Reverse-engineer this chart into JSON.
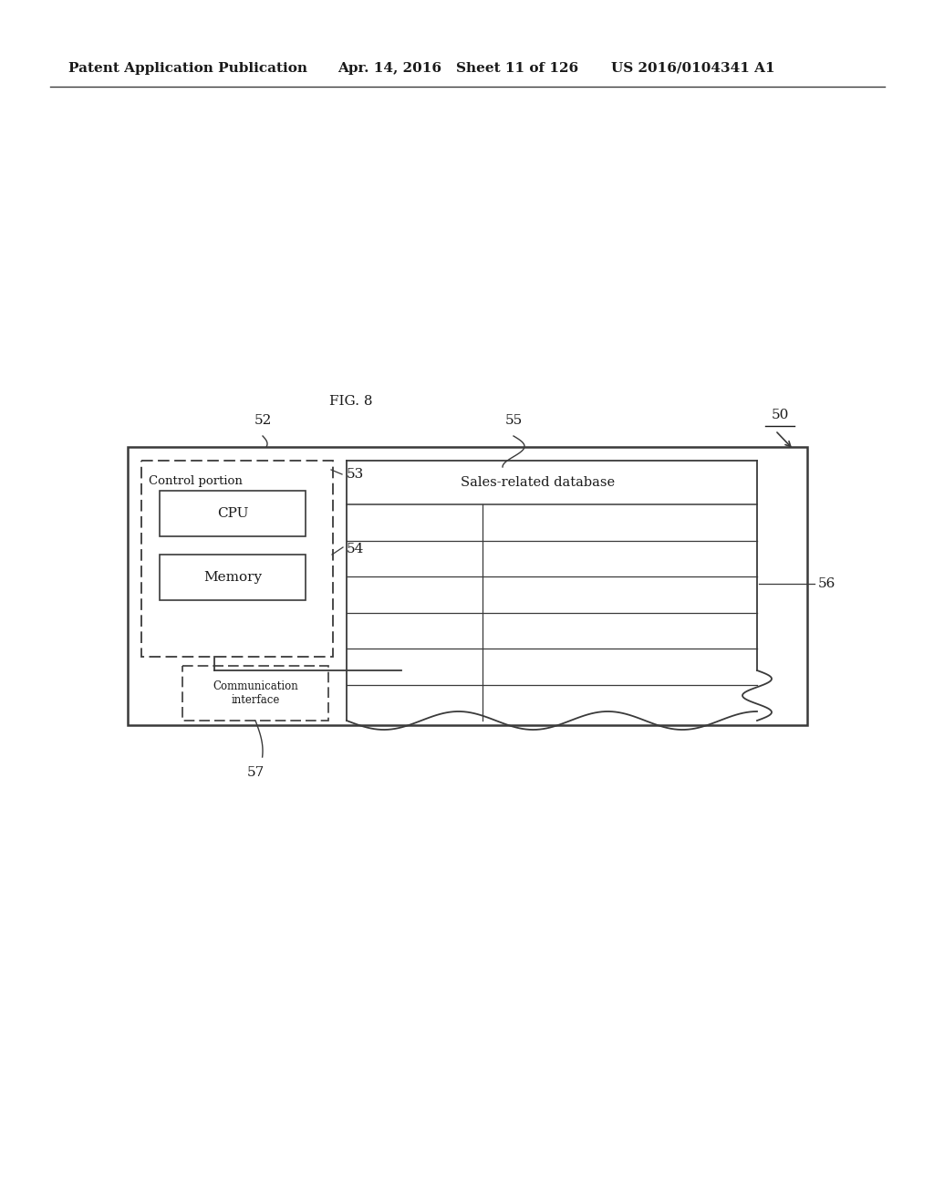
{
  "bg_color": "#ffffff",
  "header_left": "Patent Application Publication",
  "header_mid1": "Apr. 14, 2016",
  "header_mid2": "Sheet 11 of 126",
  "header_right": "US 2016/0104341 A1",
  "fig_label": "FIG. 8",
  "label_50": "50",
  "label_52": "52",
  "label_53": "53",
  "label_54": "54",
  "label_55": "55",
  "label_56": "56",
  "label_57": "57",
  "control_text": "Control portion",
  "cpu_text": "CPU",
  "memory_text": "Memory",
  "comm_text": "Communication\ninterface",
  "db_text": "Sales-related database",
  "line_color": "#3a3a3a",
  "text_color": "#1a1a1a"
}
